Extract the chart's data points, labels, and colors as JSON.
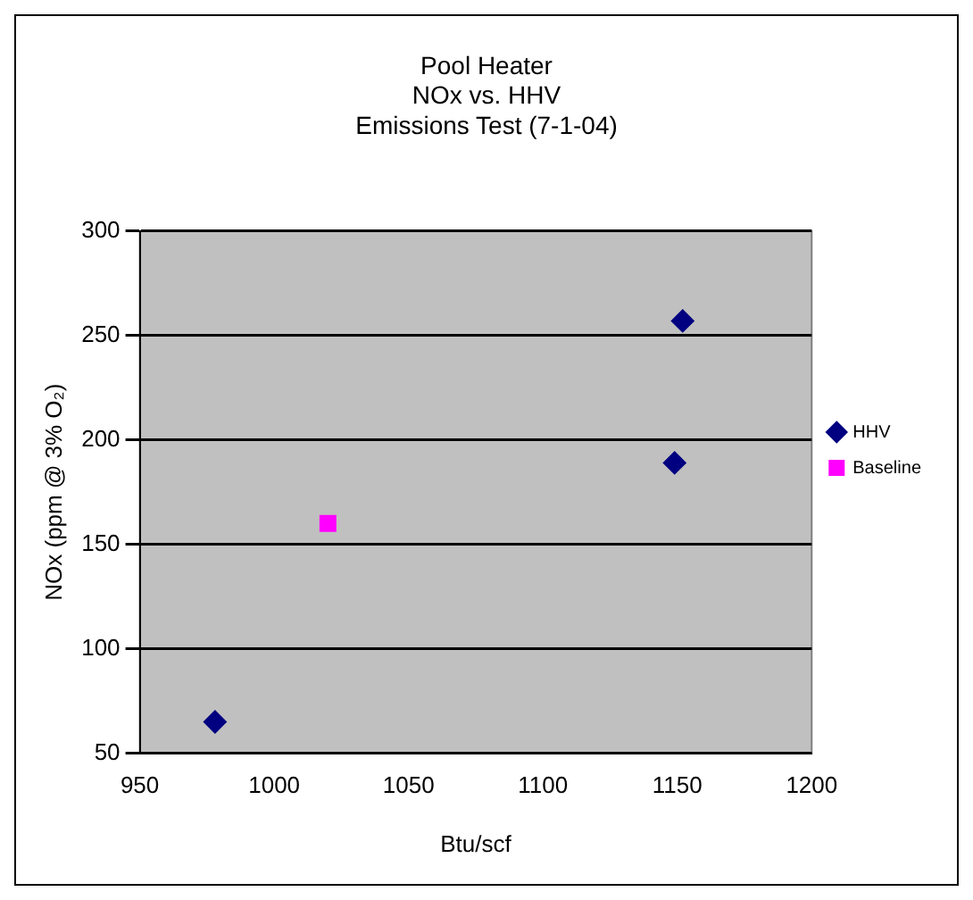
{
  "chart_data": {
    "type": "scatter",
    "title": "Pool Heater\nNOx vs. HHV\nEmissions Test (7-1-04)",
    "xlabel": "Btu/scf",
    "ylabel": "NOx (ppm @ 3% O₂)",
    "series": [
      {
        "name": "HHV",
        "color": "#000080",
        "marker": "diamond",
        "x": [
          978,
          1149,
          1152
        ],
        "values": [
          65,
          189,
          257
        ]
      },
      {
        "name": "Baseline",
        "color": "#ff00ff",
        "marker": "square",
        "x": [
          1020
        ],
        "values": [
          160
        ]
      }
    ],
    "xlim": [
      950,
      1200
    ],
    "xticks": [
      950,
      1000,
      1050,
      1100,
      1150,
      1200
    ],
    "ylim": [
      50,
      300
    ],
    "yticks": [
      50,
      100,
      150,
      200,
      250,
      300
    ],
    "grid": "y",
    "legend": "right"
  }
}
